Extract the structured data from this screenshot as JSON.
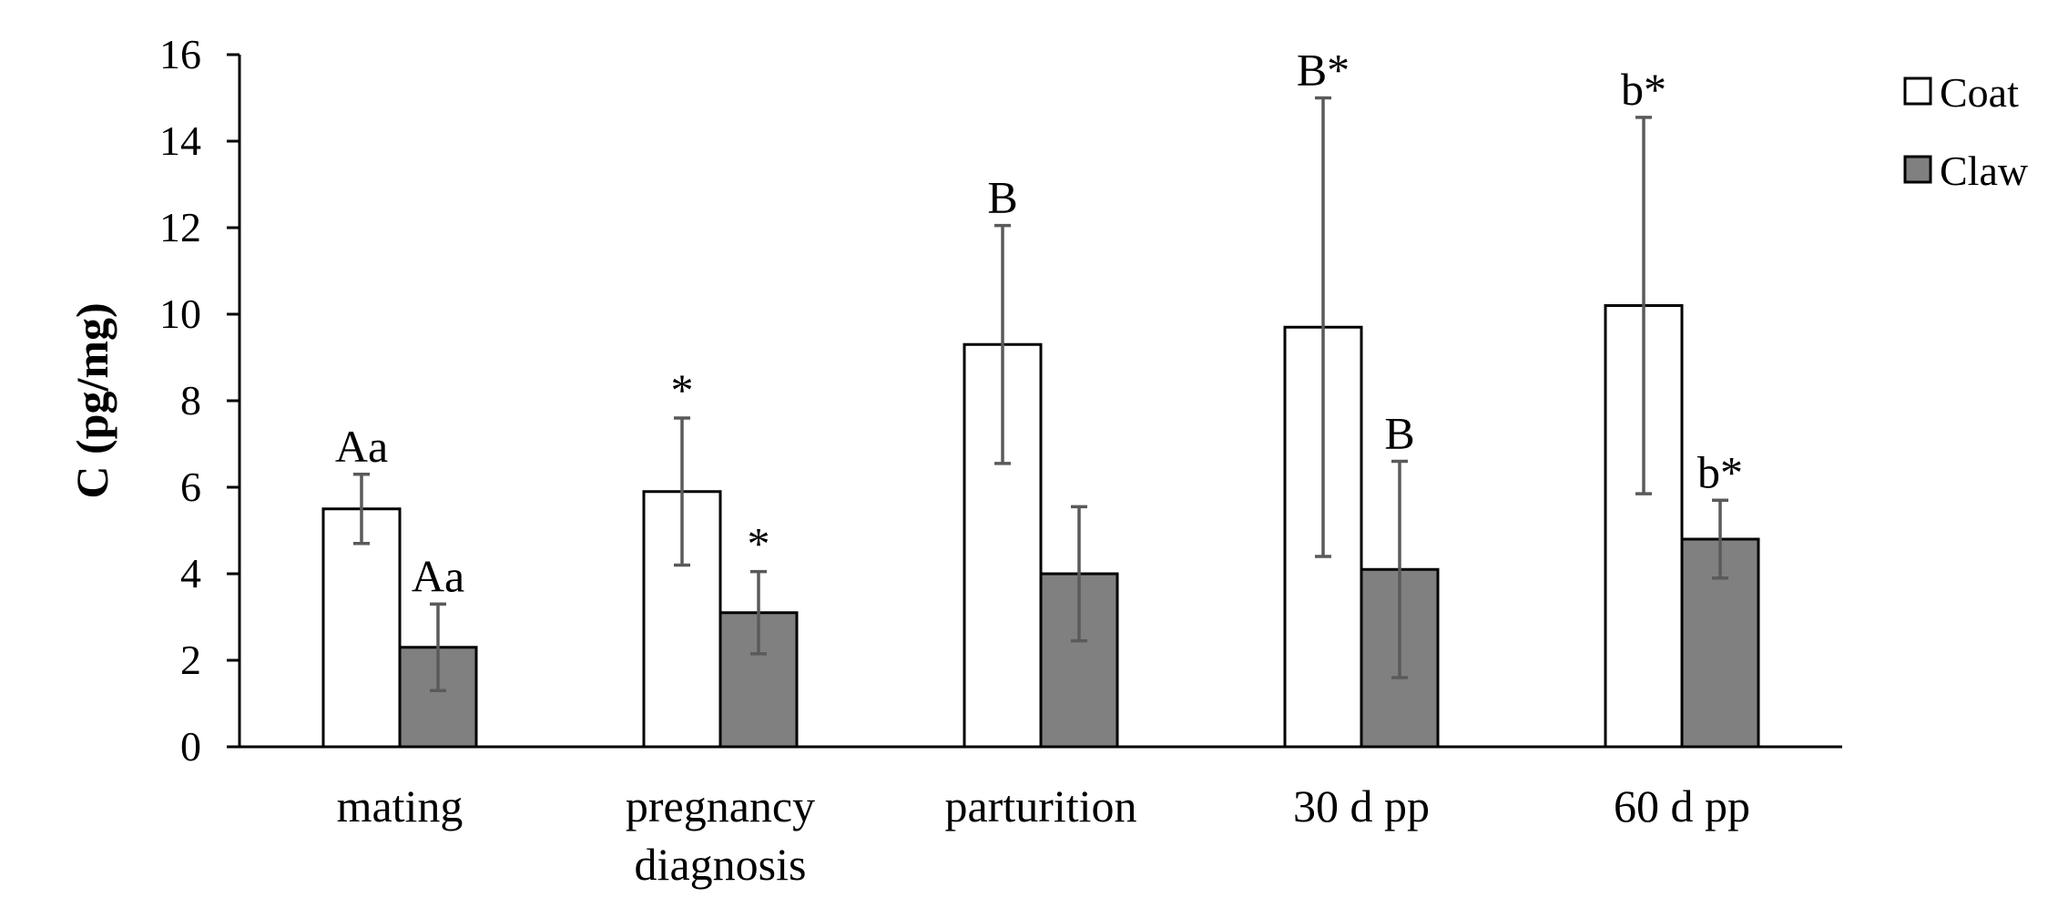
{
  "chart_data": {
    "type": "bar",
    "title": "",
    "xlabel": "",
    "ylabel": "C (pg/mg)",
    "ylim": [
      0,
      16
    ],
    "yticks": [
      0,
      2,
      4,
      6,
      8,
      10,
      12,
      14,
      16
    ],
    "grid": false,
    "legend_position": "top-right",
    "categories": [
      [
        "mating"
      ],
      [
        "pregnancy",
        "diagnosis"
      ],
      [
        "parturition"
      ],
      [
        "30  d pp"
      ],
      [
        "60  d pp"
      ]
    ],
    "series": [
      {
        "name": "Coat",
        "color": "#ffffff",
        "values": [
          5.5,
          5.9,
          9.3,
          9.7,
          10.2
        ],
        "errors": [
          0.8,
          1.7,
          2.75,
          5.3,
          4.35
        ],
        "annotations": [
          "Aa",
          "*",
          "B",
          "B*",
          "b*"
        ]
      },
      {
        "name": "Claw",
        "color": "#808080",
        "values": [
          2.3,
          3.1,
          4.0,
          4.1,
          4.8
        ],
        "errors": [
          1.0,
          0.95,
          1.55,
          2.5,
          0.9
        ],
        "annotations": [
          "Aa",
          "*",
          "",
          "B",
          "b*"
        ]
      }
    ]
  }
}
